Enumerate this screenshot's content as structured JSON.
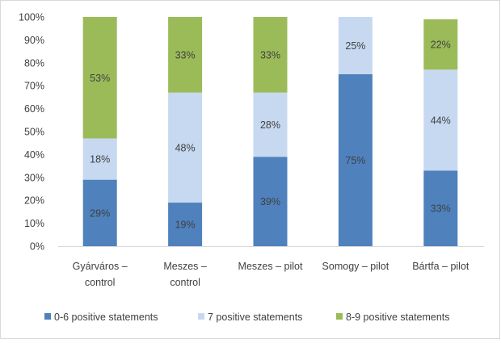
{
  "chart_data": {
    "type": "bar",
    "stacked": true,
    "categories": [
      [
        "Gyárváros –",
        "control"
      ],
      [
        "Meszes –",
        "control"
      ],
      [
        "Meszes – pilot"
      ],
      [
        "Somogy – pilot"
      ],
      [
        "Bártfa – pilot"
      ]
    ],
    "series": [
      {
        "name": "0-6 positive statements",
        "color": "#4F81BD",
        "values": [
          29,
          19,
          39,
          75,
          33
        ],
        "labels": [
          "29%",
          "19%",
          "39%",
          "75%",
          "33%"
        ]
      },
      {
        "name": "7 positive statements",
        "color": "#C6D9F1",
        "values": [
          18,
          48,
          28,
          25,
          44
        ],
        "labels": [
          "18%",
          "48%",
          "28%",
          "25%",
          "44%"
        ]
      },
      {
        "name": "8-9 positive statements",
        "color": "#9BBB59",
        "values": [
          53,
          33,
          33,
          0,
          22
        ],
        "labels": [
          "53%",
          "33%",
          "33%",
          "",
          "22%"
        ]
      }
    ],
    "yticks": [
      "0%",
      "10%",
      "20%",
      "30%",
      "40%",
      "50%",
      "60%",
      "70%",
      "80%",
      "90%",
      "100%"
    ],
    "ylim": [
      0,
      100
    ],
    "grid": false,
    "legend": "bottom"
  }
}
